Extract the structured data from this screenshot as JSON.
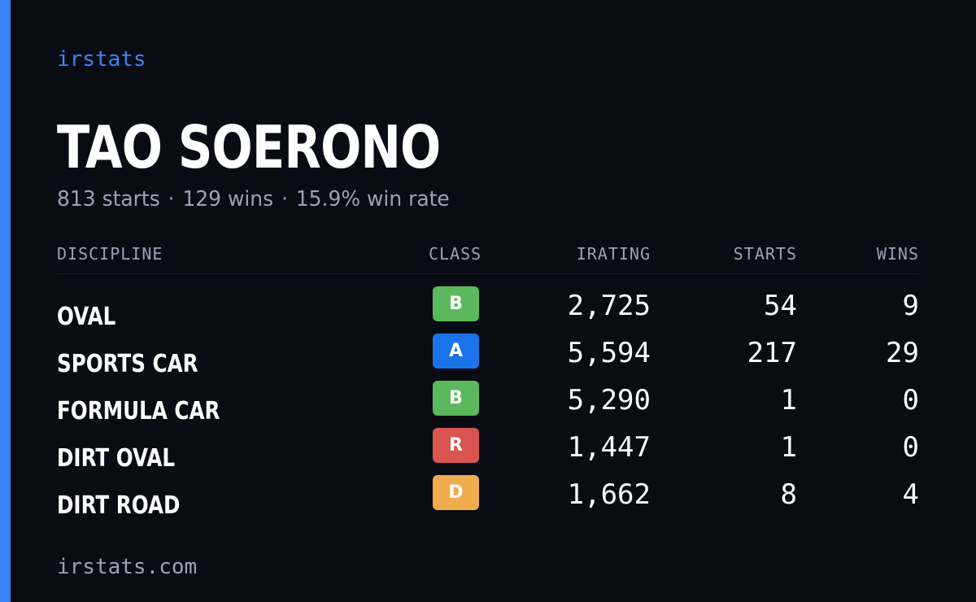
{
  "brand": "irstats",
  "driver": {
    "name": "TAO SOERONO",
    "starts": "813 starts",
    "wins": "129 wins",
    "win_rate": "15.9% win rate",
    "separator": "·"
  },
  "table": {
    "headers": {
      "discipline": "DISCIPLINE",
      "class": "CLASS",
      "irating": "IRATING",
      "starts": "STARTS",
      "wins": "WINS"
    },
    "rows": [
      {
        "discipline": "OVAL",
        "class": "B",
        "class_color": "#5cb85c",
        "irating": "2,725",
        "starts": "54",
        "wins": "9"
      },
      {
        "discipline": "SPORTS CAR",
        "class": "A",
        "class_color": "#1a73e8",
        "irating": "5,594",
        "starts": "217",
        "wins": "29"
      },
      {
        "discipline": "FORMULA CAR",
        "class": "B",
        "class_color": "#5cb85c",
        "irating": "5,290",
        "starts": "1",
        "wins": "0"
      },
      {
        "discipline": "DIRT OVAL",
        "class": "R",
        "class_color": "#d9534f",
        "irating": "1,447",
        "starts": "1",
        "wins": "0"
      },
      {
        "discipline": "DIRT ROAD",
        "class": "D",
        "class_color": "#f0ad4e",
        "irating": "1,662",
        "starts": "8",
        "wins": "4"
      }
    ]
  },
  "footer": "irstats.com",
  "colors": {
    "accent": "#3b82f6",
    "background": "#0a0c14",
    "muted": "#9aa3b2"
  }
}
